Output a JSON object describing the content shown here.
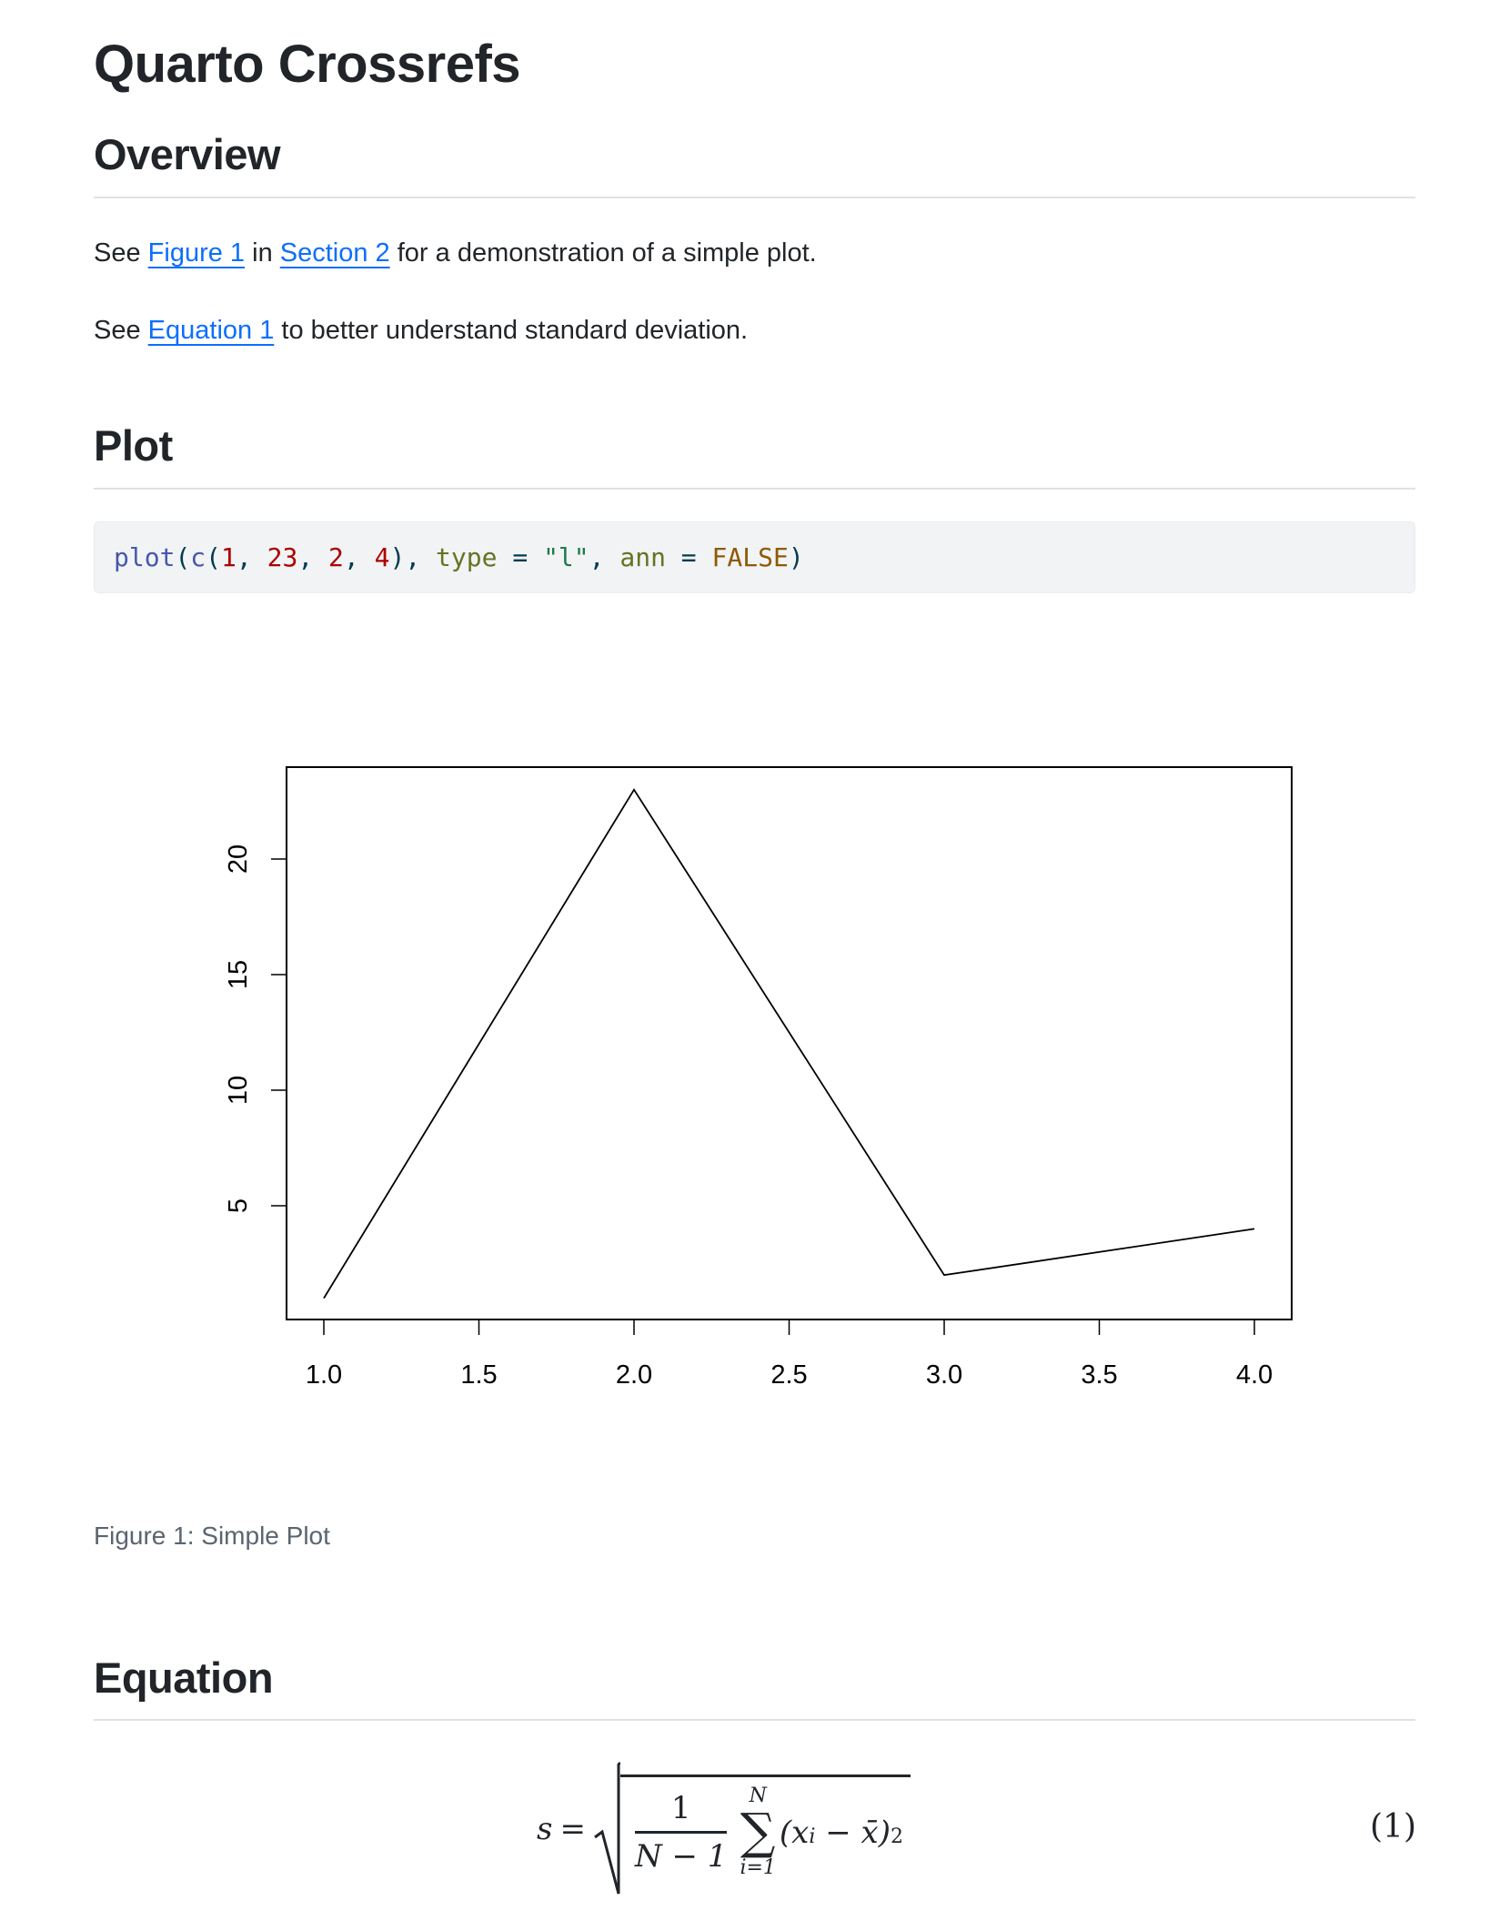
{
  "title": "Quarto Crossrefs",
  "sections": {
    "overview": {
      "heading": "Overview",
      "p1": {
        "pre": "See ",
        "link1": "Figure 1",
        "mid": " in ",
        "link2": "Section 2",
        "post": " for a demonstration of a simple plot."
      },
      "p2": {
        "pre": "See ",
        "link1": "Equation 1",
        "post": " to better understand standard deviation."
      }
    },
    "plot": {
      "heading": "Plot",
      "code": {
        "fn": "plot",
        "c": "c",
        "n1": "1",
        "n2": "23",
        "n3": "2",
        "n4": "4",
        "arg1": "type",
        "str": "\"l\"",
        "arg2": "ann",
        "const": "FALSE"
      },
      "caption": "Figure 1: Simple Plot"
    },
    "equation": {
      "heading": "Equation",
      "lhs": "s",
      "numerator": "1",
      "denominator": "N − 1",
      "sum_upper": "N",
      "sum_lower": "i=1",
      "term": "(x",
      "sub": "i",
      "minus": " − x̄)",
      "sup": "2",
      "number": "(1)"
    }
  },
  "colors": {
    "link": "#0d6efd",
    "heading": "#212529",
    "caption": "#5a6570",
    "code_bg": "#f1f3f5"
  },
  "chart_data": {
    "type": "line",
    "x": [
      1,
      2,
      3,
      4
    ],
    "y": [
      1,
      23,
      2,
      4
    ],
    "xlim": [
      1,
      4
    ],
    "ylim": [
      1,
      23
    ],
    "x_ticks": [
      "1.0",
      "1.5",
      "2.0",
      "2.5",
      "3.0",
      "3.5",
      "4.0"
    ],
    "y_ticks": [
      "5",
      "10",
      "15",
      "20"
    ],
    "title": "",
    "xlabel": "",
    "ylabel": "",
    "grid": false
  }
}
